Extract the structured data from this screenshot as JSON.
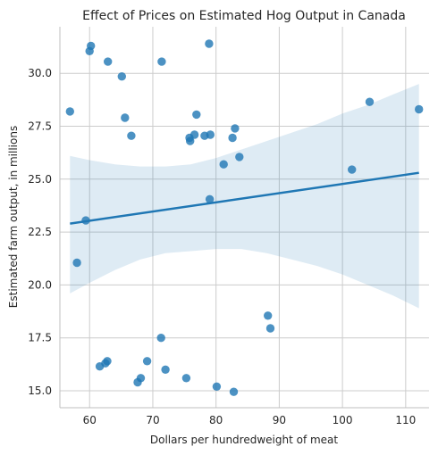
{
  "chart_data": {
    "type": "scatter",
    "title": "Effect of Prices on Estimated Hog Output in Canada",
    "xlabel": "Dollars per hundredweight of meat",
    "ylabel": "Estimated farm output, in millions",
    "xlim": [
      55.3,
      113.7
    ],
    "ylim": [
      14.2,
      32.2
    ],
    "xticks": [
      60,
      70,
      80,
      90,
      100,
      110
    ],
    "yticks": [
      15.0,
      17.5,
      20.0,
      22.5,
      25.0,
      27.5,
      30.0
    ],
    "grid": true,
    "points": [
      {
        "x": 60.2,
        "y": 31.3
      },
      {
        "x": 60.0,
        "y": 31.05
      },
      {
        "x": 62.9,
        "y": 30.55
      },
      {
        "x": 65.1,
        "y": 29.85
      },
      {
        "x": 71.4,
        "y": 30.55
      },
      {
        "x": 78.9,
        "y": 31.4
      },
      {
        "x": 56.9,
        "y": 28.2
      },
      {
        "x": 65.6,
        "y": 27.9
      },
      {
        "x": 66.6,
        "y": 27.05
      },
      {
        "x": 76.9,
        "y": 28.05
      },
      {
        "x": 75.8,
        "y": 26.95
      },
      {
        "x": 76.6,
        "y": 27.1
      },
      {
        "x": 75.9,
        "y": 26.8
      },
      {
        "x": 78.2,
        "y": 27.05
      },
      {
        "x": 79.1,
        "y": 27.1
      },
      {
        "x": 83.0,
        "y": 27.4
      },
      {
        "x": 82.6,
        "y": 26.95
      },
      {
        "x": 83.7,
        "y": 26.05
      },
      {
        "x": 81.2,
        "y": 25.7
      },
      {
        "x": 79.0,
        "y": 24.05
      },
      {
        "x": 104.3,
        "y": 28.65
      },
      {
        "x": 112.1,
        "y": 28.3
      },
      {
        "x": 101.5,
        "y": 25.45
      },
      {
        "x": 59.4,
        "y": 23.05
      },
      {
        "x": 58.0,
        "y": 21.05
      },
      {
        "x": 88.2,
        "y": 18.55
      },
      {
        "x": 88.6,
        "y": 17.95
      },
      {
        "x": 71.3,
        "y": 17.5
      },
      {
        "x": 61.6,
        "y": 16.15
      },
      {
        "x": 62.5,
        "y": 16.3
      },
      {
        "x": 62.8,
        "y": 16.4
      },
      {
        "x": 69.1,
        "y": 16.4
      },
      {
        "x": 72.0,
        "y": 16.0
      },
      {
        "x": 75.3,
        "y": 15.6
      },
      {
        "x": 68.1,
        "y": 15.6
      },
      {
        "x": 67.6,
        "y": 15.4
      },
      {
        "x": 80.1,
        "y": 15.2
      },
      {
        "x": 82.8,
        "y": 14.95
      }
    ],
    "regression": {
      "x": [
        56.9,
        112.1
      ],
      "y": [
        22.9,
        25.3
      ]
    },
    "confidence_band": {
      "x": [
        56.9,
        60.0,
        64.0,
        68.0,
        72.0,
        76.0,
        80.0,
        84.0,
        88.0,
        92.0,
        96.0,
        100.0,
        104.0,
        108.0,
        112.1
      ],
      "upper": [
        26.1,
        25.9,
        25.7,
        25.6,
        25.6,
        25.7,
        26.0,
        26.4,
        26.8,
        27.2,
        27.6,
        28.1,
        28.5,
        29.0,
        29.5
      ],
      "lower": [
        19.6,
        20.1,
        20.7,
        21.2,
        21.5,
        21.6,
        21.7,
        21.7,
        21.5,
        21.2,
        20.9,
        20.5,
        20.0,
        19.5,
        18.9
      ]
    }
  }
}
